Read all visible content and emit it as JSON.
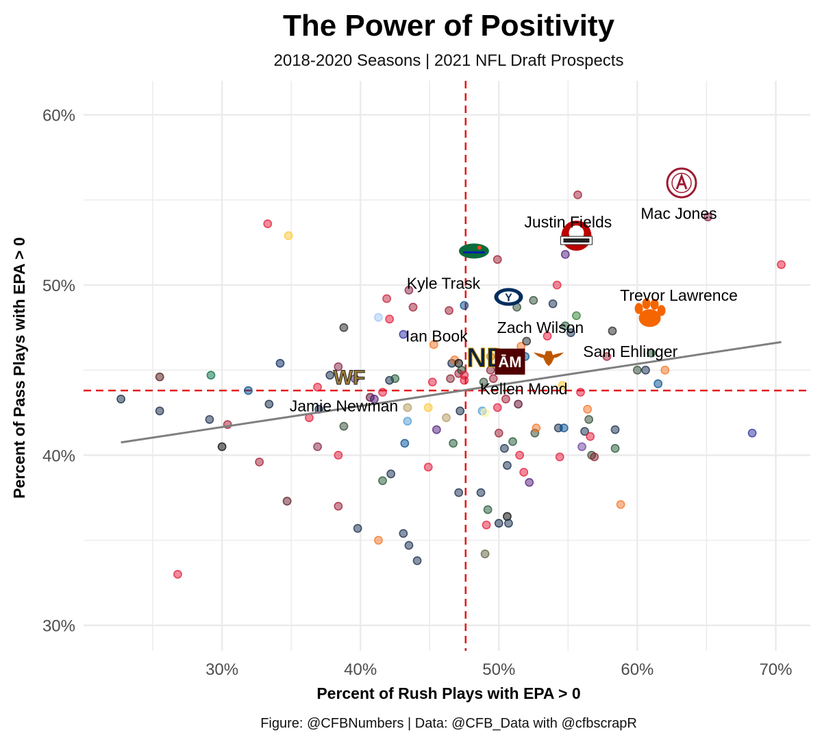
{
  "chart_data": {
    "type": "scatter",
    "title": "The Power of Positivity",
    "subtitle": "2018-2020 Seasons | 2021 NFL Draft Prospects",
    "xlabel": "Percent of Rush Plays with EPA > 0",
    "ylabel": "Percent of Pass Plays with EPA > 0",
    "caption": "Figure: @CFBNumbers | Data: @CFB_Data with @cfbscrapR",
    "xlim": [
      0.2,
      0.725
    ],
    "ylim": [
      0.285,
      0.62
    ],
    "x_ticks": [
      0.3,
      0.4,
      0.5,
      0.6,
      0.7
    ],
    "x_tick_labels": [
      "30%",
      "40%",
      "50%",
      "60%",
      "70%"
    ],
    "y_ticks": [
      0.3,
      0.4,
      0.5,
      0.6
    ],
    "y_tick_labels": [
      "30%",
      "40%",
      "50%",
      "60%"
    ],
    "grid": true,
    "reference_lines": {
      "x_mean": 0.476,
      "y_mean": 0.438,
      "color": "#e41a1c",
      "style": "dashed"
    },
    "trend_line": {
      "x": [
        0.227,
        0.704
      ],
      "y": [
        0.4075,
        0.4665
      ],
      "color": "#7f7f7f"
    },
    "highlighted": [
      {
        "label": "Mac Jones",
        "team": "Alabama",
        "logo": "alabama-logo",
        "x": 0.632,
        "y": 0.56,
        "color": "#9e1b32",
        "label_x": 0.63,
        "label_y": 0.542
      },
      {
        "label": "Justin Fields",
        "team": "Ohio State",
        "logo": "ohio-state-logo",
        "x": 0.556,
        "y": 0.529,
        "color": "#bb0000",
        "label_x": 0.55,
        "label_y": 0.537
      },
      {
        "label": "Kyle Trask",
        "team": "Florida",
        "logo": "florida-logo",
        "x": 0.482,
        "y": 0.52,
        "color": "#0021a5",
        "label_x": 0.46,
        "label_y": 0.501
      },
      {
        "label": "Trevor Lawrence",
        "team": "Clemson",
        "logo": "clemson-logo",
        "x": 0.609,
        "y": 0.483,
        "color": "#f56600",
        "label_x": 0.63,
        "label_y": 0.494
      },
      {
        "label": "Zach Wilson",
        "team": "BYU",
        "logo": "byu-logo",
        "x": 0.507,
        "y": 0.493,
        "color": "#002e5d",
        "label_x": 0.53,
        "label_y": 0.475
      },
      {
        "label": "Ian Book",
        "team": "Notre Dame",
        "logo": "notre-dame-logo",
        "x": 0.491,
        "y": 0.458,
        "color": "#0c2340",
        "label_x": 0.455,
        "label_y": 0.47
      },
      {
        "label": "Sam Ehlinger",
        "team": "Texas",
        "logo": "texas-logo",
        "x": 0.536,
        "y": 0.458,
        "color": "#bf5700",
        "label_x": 0.595,
        "label_y": 0.461
      },
      {
        "label": "Kellen Mond",
        "team": "Texas A&M",
        "logo": "texas-am-logo",
        "x": 0.508,
        "y": 0.455,
        "color": "#500000",
        "label_x": 0.518,
        "label_y": 0.439
      },
      {
        "label": "Jamie Newman",
        "team": "Wake Forest",
        "logo": "wake-forest-logo",
        "x": 0.392,
        "y": 0.446,
        "color": "#9e7e38",
        "label_x": 0.388,
        "label_y": 0.429
      }
    ],
    "points": [
      {
        "x": 0.227,
        "y": 0.433,
        "c": "#0c2340"
      },
      {
        "x": 0.255,
        "y": 0.446,
        "c": "#501214"
      },
      {
        "x": 0.255,
        "y": 0.426,
        "c": "#0c2340"
      },
      {
        "x": 0.268,
        "y": 0.33,
        "c": "#e31837"
      },
      {
        "x": 0.292,
        "y": 0.447,
        "c": "#006b3f"
      },
      {
        "x": 0.291,
        "y": 0.421,
        "c": "#13294b"
      },
      {
        "x": 0.3,
        "y": 0.405,
        "c": "#000000"
      },
      {
        "x": 0.304,
        "y": 0.418,
        "c": "#9e1b32"
      },
      {
        "x": 0.319,
        "y": 0.438,
        "c": "#004b8d"
      },
      {
        "x": 0.327,
        "y": 0.396,
        "c": "#9e1b32"
      },
      {
        "x": 0.333,
        "y": 0.536,
        "c": "#e31837"
      },
      {
        "x": 0.334,
        "y": 0.43,
        "c": "#0c2340"
      },
      {
        "x": 0.342,
        "y": 0.454,
        "c": "#00205b"
      },
      {
        "x": 0.348,
        "y": 0.529,
        "c": "#ffc72c"
      },
      {
        "x": 0.347,
        "y": 0.373,
        "c": "#5d1725"
      },
      {
        "x": 0.363,
        "y": 0.422,
        "c": "#e31837"
      },
      {
        "x": 0.369,
        "y": 0.44,
        "c": "#e31837"
      },
      {
        "x": 0.369,
        "y": 0.405,
        "c": "#861f41"
      },
      {
        "x": 0.37,
        "y": 0.427,
        "c": "#13294b"
      },
      {
        "x": 0.378,
        "y": 0.447,
        "c": "#0c2340"
      },
      {
        "x": 0.384,
        "y": 0.452,
        "c": "#861f41"
      },
      {
        "x": 0.384,
        "y": 0.4,
        "c": "#e31837"
      },
      {
        "x": 0.384,
        "y": 0.37,
        "c": "#9e1b32"
      },
      {
        "x": 0.388,
        "y": 0.475,
        "c": "#222222"
      },
      {
        "x": 0.388,
        "y": 0.417,
        "c": "#2e4a31"
      },
      {
        "x": 0.396,
        "y": 0.445,
        "c": "#4b2e83"
      },
      {
        "x": 0.398,
        "y": 0.357,
        "c": "#13294b"
      },
      {
        "x": 0.407,
        "y": 0.434,
        "c": "#5a0a2a"
      },
      {
        "x": 0.41,
        "y": 0.433,
        "c": "#4d1979"
      },
      {
        "x": 0.413,
        "y": 0.481,
        "c": "#9fc5f8"
      },
      {
        "x": 0.413,
        "y": 0.35,
        "c": "#f47321"
      },
      {
        "x": 0.416,
        "y": 0.385,
        "c": "#1e5631"
      },
      {
        "x": 0.416,
        "y": 0.437,
        "c": "#e31837"
      },
      {
        "x": 0.419,
        "y": 0.492,
        "c": "#c41e3a"
      },
      {
        "x": 0.421,
        "y": 0.48,
        "c": "#e31837"
      },
      {
        "x": 0.421,
        "y": 0.444,
        "c": "#0c2340"
      },
      {
        "x": 0.422,
        "y": 0.389,
        "c": "#13294b"
      },
      {
        "x": 0.425,
        "y": 0.445,
        "c": "#1e5631"
      },
      {
        "x": 0.431,
        "y": 0.471,
        "c": "#2a2a9e"
      },
      {
        "x": 0.431,
        "y": 0.354,
        "c": "#13294b"
      },
      {
        "x": 0.432,
        "y": 0.407,
        "c": "#004b8d"
      },
      {
        "x": 0.434,
        "y": 0.428,
        "c": "#b3995d"
      },
      {
        "x": 0.434,
        "y": 0.42,
        "c": "#4b9cd3"
      },
      {
        "x": 0.435,
        "y": 0.497,
        "c": "#861f41"
      },
      {
        "x": 0.435,
        "y": 0.347,
        "c": "#13294b"
      },
      {
        "x": 0.438,
        "y": 0.487,
        "c": "#9e1b32"
      },
      {
        "x": 0.441,
        "y": 0.338,
        "c": "#13294b"
      },
      {
        "x": 0.449,
        "y": 0.393,
        "c": "#e31837"
      },
      {
        "x": 0.449,
        "y": 0.428,
        "c": "#ffc72c"
      },
      {
        "x": 0.452,
        "y": 0.443,
        "c": "#e31837"
      },
      {
        "x": 0.453,
        "y": 0.465,
        "c": "#f47321"
      },
      {
        "x": 0.455,
        "y": 0.415,
        "c": "#4d1979"
      },
      {
        "x": 0.462,
        "y": 0.422,
        "c": "#b3995d"
      },
      {
        "x": 0.464,
        "y": 0.485,
        "c": "#9e1b32"
      },
      {
        "x": 0.465,
        "y": 0.445,
        "c": "#8a2432"
      },
      {
        "x": 0.466,
        "y": 0.454,
        "c": "#0c2340"
      },
      {
        "x": 0.467,
        "y": 0.407,
        "c": "#1e5631"
      },
      {
        "x": 0.468,
        "y": 0.456,
        "c": "#f47321"
      },
      {
        "x": 0.471,
        "y": 0.454,
        "c": "#000000"
      },
      {
        "x": 0.471,
        "y": 0.448,
        "c": "#9e1b32"
      },
      {
        "x": 0.471,
        "y": 0.378,
        "c": "#13294b"
      },
      {
        "x": 0.472,
        "y": 0.426,
        "c": "#0c2340"
      },
      {
        "x": 0.473,
        "y": 0.45,
        "c": "#2e4a31"
      },
      {
        "x": 0.475,
        "y": 0.488,
        "c": "#004b8d"
      },
      {
        "x": 0.475,
        "y": 0.444,
        "c": "#e31837"
      },
      {
        "x": 0.475,
        "y": 0.447,
        "c": "#e31837"
      },
      {
        "x": 0.487,
        "y": 0.378,
        "c": "#13294b"
      },
      {
        "x": 0.488,
        "y": 0.426,
        "c": "#4b9cd3"
      },
      {
        "x": 0.489,
        "y": 0.443,
        "c": "#2e4a31"
      },
      {
        "x": 0.49,
        "y": 0.425,
        "c": "#fdf5a6"
      },
      {
        "x": 0.49,
        "y": 0.342,
        "c": "#5d5d3d"
      },
      {
        "x": 0.491,
        "y": 0.359,
        "c": "#e31837"
      },
      {
        "x": 0.492,
        "y": 0.368,
        "c": "#1e5631"
      },
      {
        "x": 0.494,
        "y": 0.458,
        "c": "#cc8800"
      },
      {
        "x": 0.494,
        "y": 0.45,
        "c": "#8a2432"
      },
      {
        "x": 0.496,
        "y": 0.445,
        "c": "#9e1b32"
      },
      {
        "x": 0.499,
        "y": 0.515,
        "c": "#9e1b32"
      },
      {
        "x": 0.499,
        "y": 0.428,
        "c": "#e31837"
      },
      {
        "x": 0.5,
        "y": 0.413,
        "c": "#9e1b32"
      },
      {
        "x": 0.5,
        "y": 0.36,
        "c": "#0c2340"
      },
      {
        "x": 0.504,
        "y": 0.404,
        "c": "#13294b"
      },
      {
        "x": 0.505,
        "y": 0.433,
        "c": "#9e1b32"
      },
      {
        "x": 0.506,
        "y": 0.394,
        "c": "#13294b"
      },
      {
        "x": 0.506,
        "y": 0.364,
        "c": "#000000"
      },
      {
        "x": 0.507,
        "y": 0.36,
        "c": "#13294b"
      },
      {
        "x": 0.51,
        "y": 0.408,
        "c": "#1e5631"
      },
      {
        "x": 0.513,
        "y": 0.487,
        "c": "#2e4a31"
      },
      {
        "x": 0.514,
        "y": 0.43,
        "c": "#5a0a2a"
      },
      {
        "x": 0.515,
        "y": 0.4,
        "c": "#e31837"
      },
      {
        "x": 0.516,
        "y": 0.464,
        "c": "#f47321"
      },
      {
        "x": 0.518,
        "y": 0.39,
        "c": "#e31837"
      },
      {
        "x": 0.519,
        "y": 0.458,
        "c": "#004b8d"
      },
      {
        "x": 0.52,
        "y": 0.467,
        "c": "#222222"
      },
      {
        "x": 0.522,
        "y": 0.384,
        "c": "#4d1979"
      },
      {
        "x": 0.525,
        "y": 0.491,
        "c": "#2e4a31"
      },
      {
        "x": 0.526,
        "y": 0.413,
        "c": "#2e4a31"
      },
      {
        "x": 0.527,
        "y": 0.416,
        "c": "#f47321"
      },
      {
        "x": 0.535,
        "y": 0.47,
        "c": "#e31837"
      },
      {
        "x": 0.539,
        "y": 0.489,
        "c": "#13294b"
      },
      {
        "x": 0.542,
        "y": 0.5,
        "c": "#e31837"
      },
      {
        "x": 0.543,
        "y": 0.416,
        "c": "#13294b"
      },
      {
        "x": 0.544,
        "y": 0.399,
        "c": "#e31837"
      },
      {
        "x": 0.546,
        "y": 0.441,
        "c": "#ffc72c"
      },
      {
        "x": 0.547,
        "y": 0.416,
        "c": "#004b8d"
      },
      {
        "x": 0.548,
        "y": 0.518,
        "c": "#4d1979"
      },
      {
        "x": 0.548,
        "y": 0.476,
        "c": "#1e5631"
      },
      {
        "x": 0.552,
        "y": 0.472,
        "c": "#13294b"
      },
      {
        "x": 0.556,
        "y": 0.482,
        "c": "#2e7d32"
      },
      {
        "x": 0.557,
        "y": 0.553,
        "c": "#9e1b32"
      },
      {
        "x": 0.559,
        "y": 0.437,
        "c": "#e31837"
      },
      {
        "x": 0.56,
        "y": 0.405,
        "c": "#6a3d9a"
      },
      {
        "x": 0.562,
        "y": 0.414,
        "c": "#13294b"
      },
      {
        "x": 0.564,
        "y": 0.427,
        "c": "#f47321"
      },
      {
        "x": 0.565,
        "y": 0.421,
        "c": "#2e4a31"
      },
      {
        "x": 0.566,
        "y": 0.411,
        "c": "#e31837"
      },
      {
        "x": 0.567,
        "y": 0.4,
        "c": "#2e4a31"
      },
      {
        "x": 0.569,
        "y": 0.399,
        "c": "#8a2432"
      },
      {
        "x": 0.578,
        "y": 0.458,
        "c": "#9e1b32"
      },
      {
        "x": 0.582,
        "y": 0.473,
        "c": "#222222"
      },
      {
        "x": 0.584,
        "y": 0.415,
        "c": "#13294b"
      },
      {
        "x": 0.584,
        "y": 0.404,
        "c": "#1e5631"
      },
      {
        "x": 0.588,
        "y": 0.371,
        "c": "#f47321"
      },
      {
        "x": 0.6,
        "y": 0.45,
        "c": "#2e4a31"
      },
      {
        "x": 0.606,
        "y": 0.45,
        "c": "#13294b"
      },
      {
        "x": 0.61,
        "y": 0.46,
        "c": "#1e5631"
      },
      {
        "x": 0.615,
        "y": 0.442,
        "c": "#004b8d"
      },
      {
        "x": 0.62,
        "y": 0.45,
        "c": "#f47321"
      },
      {
        "x": 0.651,
        "y": 0.54,
        "c": "#861f41"
      },
      {
        "x": 0.683,
        "y": 0.413,
        "c": "#2a2a9e"
      },
      {
        "x": 0.704,
        "y": 0.512,
        "c": "#e31837"
      }
    ]
  },
  "logos": {
    "notre_dame_text": "ND",
    "wake_forest_text": "WF",
    "byu_text": "Y",
    "texas_am_text": "ĀM"
  }
}
